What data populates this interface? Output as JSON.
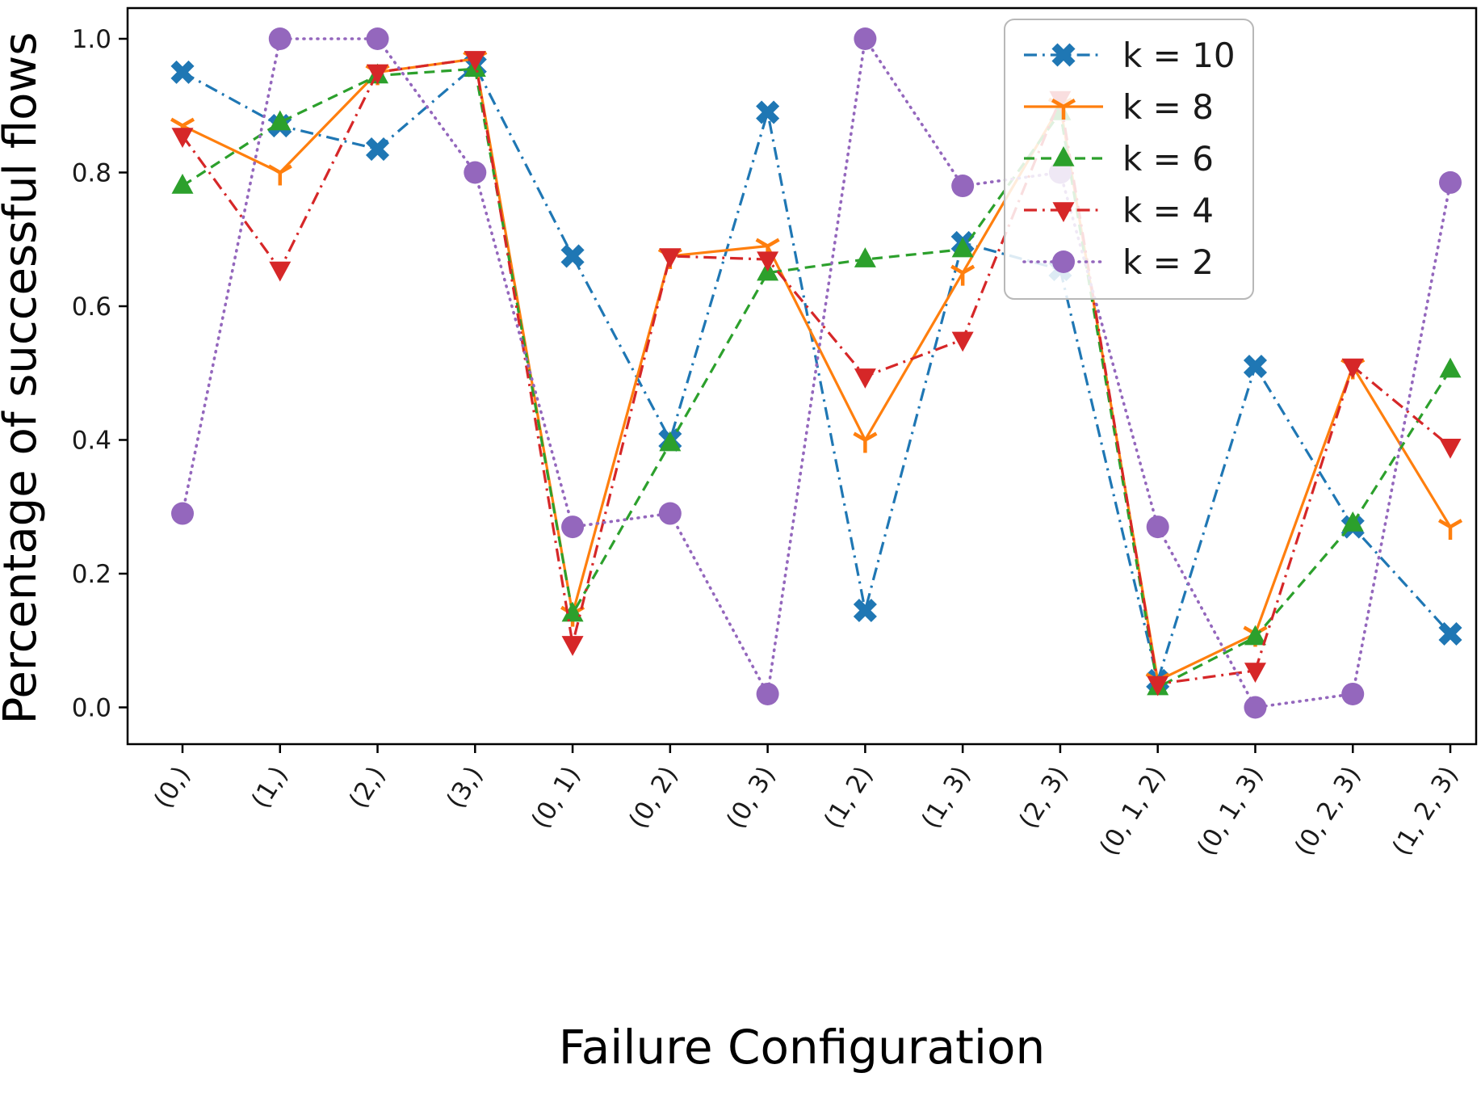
{
  "chart_data": {
    "type": "line",
    "title": "",
    "xlabel": "Failure Configuration",
    "ylabel": "Percentage of successful flows",
    "categories": [
      "(0,)",
      "(1,)",
      "(2,)",
      "(3,)",
      "(0, 1)",
      "(0, 2)",
      "(0, 3)",
      "(1, 2)",
      "(1, 3)",
      "(2, 3)",
      "(0, 1, 2)",
      "(0, 1, 3)",
      "(0, 2, 3)",
      "(1, 2, 3)"
    ],
    "yticks": [
      0.0,
      0.2,
      0.4,
      0.6,
      0.8,
      1.0
    ],
    "ylim": [
      -0.05,
      1.05
    ],
    "grid": false,
    "legend_position": "upper right",
    "series": [
      {
        "name": "k = 10",
        "color": "#1f77b4",
        "linestyle": "dashdot",
        "marker": "X",
        "values": [
          0.95,
          0.87,
          0.835,
          0.96,
          0.675,
          0.4,
          0.89,
          0.145,
          0.695,
          0.655,
          0.04,
          0.51,
          0.27,
          0.11
        ]
      },
      {
        "name": "k = 8",
        "color": "#ff7f0e",
        "linestyle": "solid",
        "marker": "tri-down",
        "values": [
          0.87,
          0.8,
          0.95,
          0.97,
          0.14,
          0.675,
          0.69,
          0.4,
          0.65,
          0.9,
          0.04,
          0.11,
          0.51,
          0.27
        ]
      },
      {
        "name": "k = 6",
        "color": "#2ca02c",
        "linestyle": "dashed",
        "marker": "triangle-up",
        "values": [
          0.78,
          0.875,
          0.945,
          0.955,
          0.14,
          0.395,
          0.65,
          0.67,
          0.685,
          0.89,
          0.03,
          0.105,
          0.275,
          0.505
        ]
      },
      {
        "name": "k = 4",
        "color": "#d62728",
        "linestyle": "dashdot",
        "marker": "triangle-down",
        "values": [
          0.855,
          0.655,
          0.95,
          0.97,
          0.095,
          0.675,
          0.67,
          0.495,
          0.55,
          0.91,
          0.035,
          0.055,
          0.51,
          0.39
        ]
      },
      {
        "name": "k = 2",
        "color": "#9467bd",
        "linestyle": "dotted",
        "marker": "circle",
        "values": [
          0.29,
          1.0,
          1.0,
          0.8,
          0.27,
          0.29,
          0.02,
          1.0,
          0.78,
          0.8,
          0.27,
          0.0,
          0.02,
          0.785
        ]
      }
    ]
  }
}
